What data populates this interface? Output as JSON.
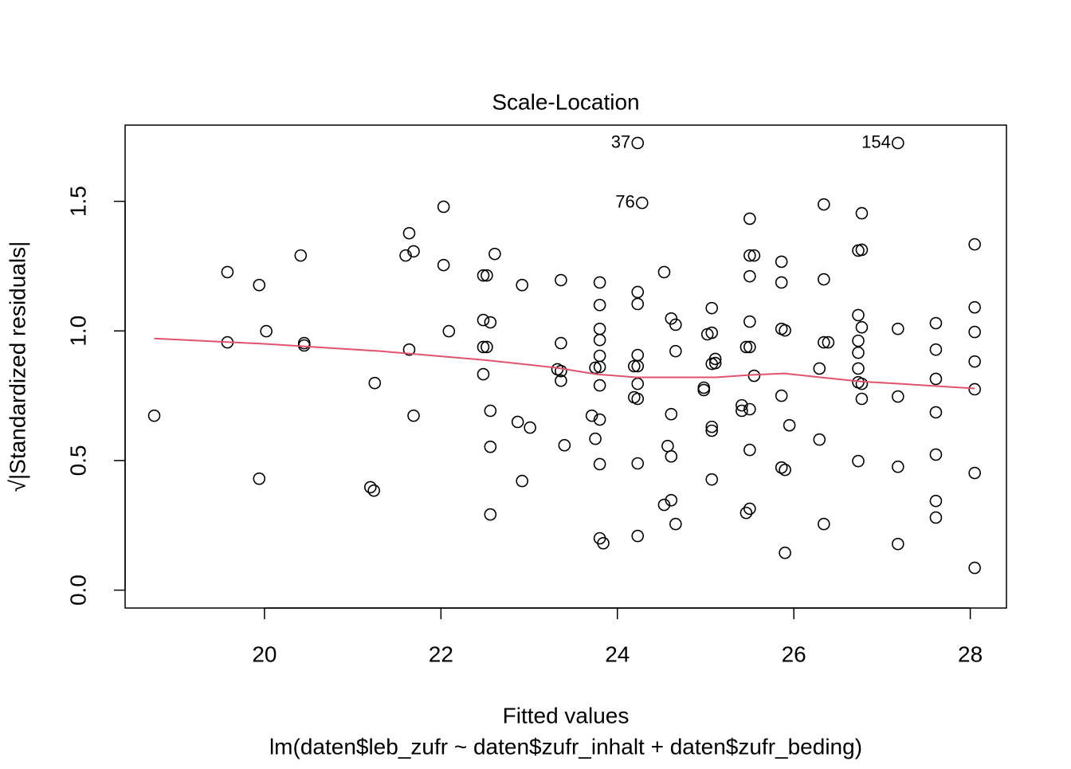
{
  "chart_data": {
    "type": "scatter",
    "title": "Scale-Location",
    "xlabel": "Fitted values",
    "subtitle": "lm(daten$leb_zufr ~ daten$zufr_inhalt + daten$zufr_beding)",
    "ylabel": "√|Standardized residuals|",
    "xlim": [
      18.42,
      28.41
    ],
    "ylim": [
      -0.069,
      1.794
    ],
    "xticks": [
      20,
      22,
      24,
      26,
      28
    ],
    "yticks": [
      {
        "value": 0,
        "label": "0.0"
      },
      0.5,
      {
        "value": 1,
        "label": "1.0"
      },
      1.5
    ],
    "grid": false,
    "series": [
      {
        "color": "#000000",
        "marker": "open-circle",
        "x": [
          18.75,
          19.58,
          19.58,
          19.94,
          20.02,
          19.94,
          20.41,
          20.45,
          20.45,
          21.2,
          21.24,
          21.25,
          21.6,
          21.64,
          21.69,
          21.64,
          21.69,
          22.03,
          22.03,
          22.09,
          22.48,
          22.52,
          22.48,
          22.56,
          22.48,
          22.52,
          22.48,
          22.56,
          22.56,
          22.56,
          22.61,
          22.87,
          22.92,
          22.92,
          23.01,
          23.32,
          23.36,
          23.36,
          23.36,
          23.36,
          23.4,
          23.71,
          23.75,
          23.75,
          23.8,
          23.8,
          23.8,
          23.8,
          23.8,
          23.8,
          23.8,
          23.8,
          23.8,
          23.8,
          23.84,
          24.19,
          24.23,
          24.19,
          24.23,
          24.23,
          24.23,
          24.23,
          24.23,
          24.23,
          24.23,
          24.23,
          24.28,
          24.53,
          24.53,
          24.57,
          24.61,
          24.66,
          24.66,
          24.61,
          24.61,
          24.61,
          24.66,
          24.98,
          24.98,
          25.02,
          25.07,
          25.07,
          25.07,
          25.11,
          25.11,
          25.07,
          25.07,
          25.07,
          25.41,
          25.41,
          25.46,
          25.5,
          25.5,
          25.5,
          25.55,
          25.5,
          25.5,
          25.55,
          25.5,
          25.5,
          25.46,
          25.5,
          25.86,
          25.86,
          25.86,
          25.9,
          25.86,
          25.86,
          25.9,
          25.95,
          25.9,
          26.29,
          26.29,
          26.34,
          26.34,
          26.34,
          26.39,
          26.34,
          26.73,
          26.73,
          26.77,
          26.77,
          26.73,
          26.73,
          26.77,
          26.73,
          26.73,
          26.77,
          26.77,
          26.73,
          27.18,
          27.18,
          27.18,
          27.18,
          27.18,
          27.61,
          27.61,
          27.61,
          27.61,
          27.61,
          27.61,
          27.61,
          28.05,
          28.05,
          28.05,
          28.05,
          28.05,
          28.05,
          28.05
        ],
        "values": [
          0.673,
          1.227,
          0.956,
          1.177,
          0.999,
          0.43,
          1.291,
          0.953,
          0.944,
          0.397,
          0.384,
          0.799,
          1.291,
          1.377,
          1.307,
          0.928,
          0.673,
          1.479,
          1.254,
          0.999,
          1.214,
          1.214,
          1.042,
          1.033,
          0.938,
          0.938,
          0.833,
          0.692,
          0.553,
          0.292,
          1.297,
          0.649,
          1.177,
          0.421,
          0.627,
          0.852,
          0.845,
          1.196,
          0.953,
          0.808,
          0.559,
          0.673,
          0.584,
          0.858,
          1.187,
          1.1,
          1.008,
          0.965,
          0.904,
          0.861,
          0.79,
          0.658,
          0.486,
          0.2,
          0.181,
          0.864,
          0.864,
          0.744,
          0.738,
          1.15,
          1.104,
          0.907,
          0.796,
          0.489,
          0.209,
          1.725,
          1.494,
          1.227,
          0.329,
          0.556,
          1.048,
          1.024,
          0.922,
          0.679,
          0.516,
          0.347,
          0.255,
          0.772,
          0.781,
          0.987,
          0.993,
          1.088,
          0.873,
          0.892,
          0.876,
          0.63,
          0.615,
          0.427,
          0.713,
          0.692,
          0.938,
          0.938,
          1.433,
          1.291,
          1.291,
          1.211,
          1.036,
          0.827,
          0.698,
          0.541,
          0.298,
          0.314,
          1.267,
          1.187,
          1.008,
          1.002,
          0.75,
          0.473,
          0.464,
          0.636,
          0.144,
          0.855,
          0.581,
          1.488,
          1.199,
          0.956,
          0.956,
          0.255,
          1.061,
          1.31,
          1.313,
          1.454,
          0.962,
          0.916,
          1.014,
          0.855,
          0.802,
          0.796,
          0.738,
          0.498,
          1.725,
          1.008,
          0.747,
          0.476,
          0.178,
          1.03,
          0.928,
          0.815,
          0.686,
          0.523,
          0.344,
          0.28,
          1.334,
          1.091,
          0.996,
          0.882,
          0.775,
          0.452,
          0.086
        ]
      },
      {
        "color": "#df536b",
        "marker": "line",
        "x": [
          18.75,
          20.0,
          21.31,
          22.49,
          23.31,
          23.76,
          24.21,
          24.67,
          25.12,
          25.49,
          25.89,
          26.3,
          26.76,
          27.21,
          28.05
        ],
        "values": [
          0.971,
          0.95,
          0.922,
          0.888,
          0.858,
          0.833,
          0.821,
          0.821,
          0.821,
          0.83,
          0.836,
          0.821,
          0.805,
          0.796,
          0.778
        ]
      }
    ],
    "annotations": [
      {
        "text": "37",
        "x": 24.23,
        "y": 1.725
      },
      {
        "text": "76",
        "x": 24.28,
        "y": 1.494
      },
      {
        "text": "154",
        "x": 27.18,
        "y": 1.725
      }
    ]
  }
}
